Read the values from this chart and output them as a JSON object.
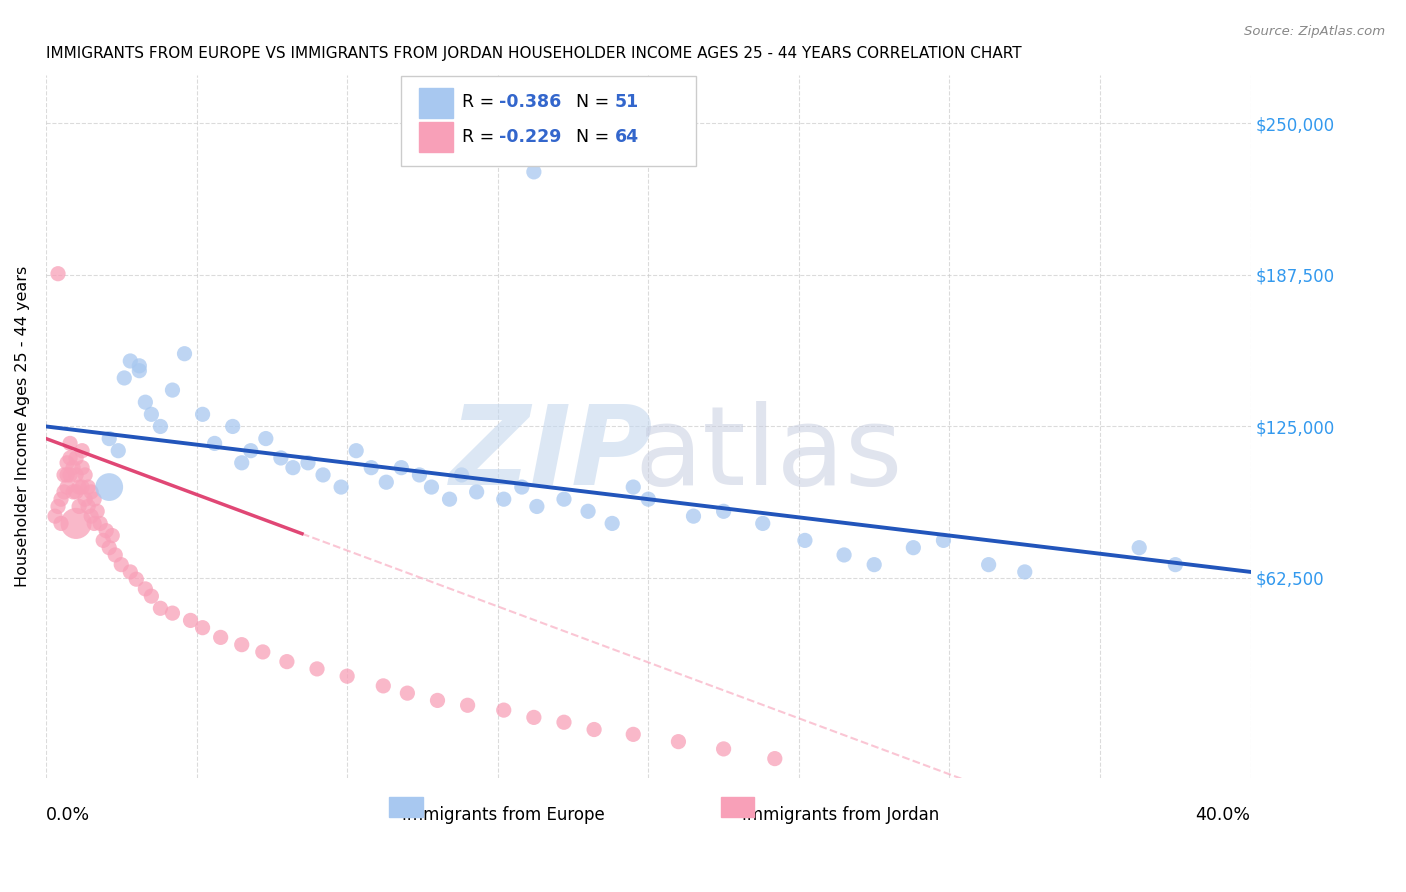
{
  "title": "IMMIGRANTS FROM EUROPE VS IMMIGRANTS FROM JORDAN HOUSEHOLDER INCOME AGES 25 - 44 YEARS CORRELATION CHART",
  "source": "Source: ZipAtlas.com",
  "ylabel": "Householder Income Ages 25 - 44 years",
  "xlim": [
    0.0,
    0.4
  ],
  "ylim": [
    -20000,
    270000
  ],
  "blue_label": "Immigrants from Europe",
  "pink_label": "Immigrants from Jordan",
  "blue_R": -0.386,
  "blue_N": 51,
  "pink_R": -0.229,
  "pink_N": 64,
  "blue_color": "#a8c8f0",
  "blue_line_color": "#2255bb",
  "pink_color": "#f8a0b8",
  "pink_line_color": "#dd3366",
  "legend_R_color": "#3366cc",
  "legend_N_color": "#3366cc",
  "ytick_vals": [
    62500,
    125000,
    187500,
    250000
  ],
  "ytick_labels": [
    "$62,500",
    "$125,000",
    "$187,500",
    "$250,000"
  ],
  "blue_scatter_x": [
    0.021,
    0.024,
    0.026,
    0.028,
    0.031,
    0.031,
    0.033,
    0.035,
    0.038,
    0.042,
    0.046,
    0.052,
    0.056,
    0.062,
    0.065,
    0.068,
    0.073,
    0.078,
    0.082,
    0.087,
    0.092,
    0.098,
    0.103,
    0.108,
    0.113,
    0.118,
    0.124,
    0.128,
    0.134,
    0.138,
    0.143,
    0.152,
    0.158,
    0.163,
    0.172,
    0.18,
    0.188,
    0.195,
    0.2,
    0.215,
    0.225,
    0.238,
    0.252,
    0.265,
    0.275,
    0.288,
    0.298,
    0.313,
    0.325,
    0.363,
    0.375
  ],
  "blue_scatter_y": [
    120000,
    115000,
    145000,
    152000,
    148000,
    150000,
    135000,
    130000,
    125000,
    140000,
    155000,
    130000,
    118000,
    125000,
    110000,
    115000,
    120000,
    112000,
    108000,
    110000,
    105000,
    100000,
    115000,
    108000,
    102000,
    108000,
    105000,
    100000,
    95000,
    105000,
    98000,
    95000,
    100000,
    92000,
    95000,
    90000,
    85000,
    100000,
    95000,
    88000,
    90000,
    85000,
    78000,
    72000,
    68000,
    75000,
    78000,
    68000,
    65000,
    75000,
    68000
  ],
  "blue_scatter_size": [
    60,
    60,
    60,
    60,
    60,
    60,
    60,
    60,
    60,
    60,
    60,
    60,
    60,
    60,
    60,
    60,
    60,
    60,
    60,
    60,
    60,
    60,
    60,
    60,
    60,
    60,
    60,
    60,
    60,
    60,
    60,
    60,
    60,
    60,
    60,
    60,
    60,
    60,
    60,
    60,
    60,
    60,
    60,
    60,
    60,
    60,
    60,
    60,
    60,
    60,
    60
  ],
  "blue_outlier_x": [
    0.162
  ],
  "blue_outlier_y": [
    230000
  ],
  "blue_large_x": [
    0.021
  ],
  "blue_large_y": [
    100000
  ],
  "blue_large_size": [
    400
  ],
  "pink_scatter_x": [
    0.003,
    0.004,
    0.005,
    0.005,
    0.006,
    0.006,
    0.007,
    0.007,
    0.007,
    0.008,
    0.008,
    0.008,
    0.009,
    0.009,
    0.01,
    0.01,
    0.01,
    0.011,
    0.011,
    0.012,
    0.012,
    0.012,
    0.013,
    0.013,
    0.014,
    0.014,
    0.015,
    0.015,
    0.016,
    0.016,
    0.017,
    0.018,
    0.019,
    0.02,
    0.021,
    0.022,
    0.023,
    0.025,
    0.028,
    0.03,
    0.033,
    0.035,
    0.038,
    0.042,
    0.048,
    0.052,
    0.058,
    0.065,
    0.072,
    0.08,
    0.09,
    0.1,
    0.112,
    0.12,
    0.13,
    0.14,
    0.152,
    0.162,
    0.172,
    0.182,
    0.195,
    0.21,
    0.225,
    0.242
  ],
  "pink_scatter_y": [
    88000,
    92000,
    95000,
    85000,
    105000,
    98000,
    110000,
    105000,
    100000,
    118000,
    112000,
    105000,
    108000,
    98000,
    112000,
    105000,
    98000,
    100000,
    92000,
    115000,
    108000,
    100000,
    105000,
    95000,
    100000,
    92000,
    98000,
    88000,
    95000,
    85000,
    90000,
    85000,
    78000,
    82000,
    75000,
    80000,
    72000,
    68000,
    65000,
    62000,
    58000,
    55000,
    50000,
    48000,
    45000,
    42000,
    38000,
    35000,
    32000,
    28000,
    25000,
    22000,
    18000,
    15000,
    12000,
    10000,
    8000,
    5000,
    3000,
    0,
    -2000,
    -5000,
    -8000,
    -12000
  ],
  "pink_scatter_size": [
    60,
    60,
    60,
    60,
    60,
    60,
    60,
    60,
    60,
    60,
    60,
    60,
    60,
    60,
    60,
    60,
    60,
    60,
    60,
    60,
    60,
    60,
    60,
    60,
    60,
    60,
    60,
    60,
    60,
    60,
    60,
    60,
    60,
    60,
    60,
    60,
    60,
    60,
    60,
    60,
    60,
    60,
    60,
    60,
    60,
    60,
    60,
    60,
    60,
    60,
    60,
    60,
    60,
    60,
    60,
    60,
    60,
    60,
    60,
    60,
    60,
    60,
    60,
    60
  ],
  "pink_outlier_x": [
    0.004
  ],
  "pink_outlier_y": [
    188000
  ],
  "pink_large_x": [
    0.01
  ],
  "pink_large_y": [
    85000
  ],
  "pink_large_size": [
    500
  ]
}
